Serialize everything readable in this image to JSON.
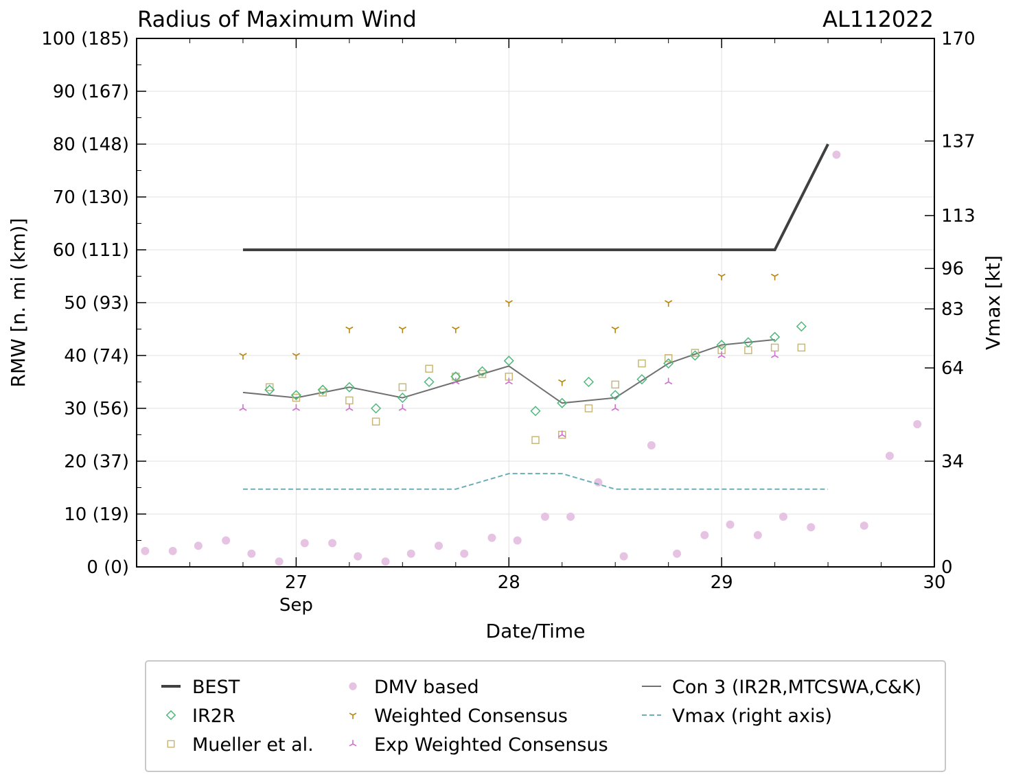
{
  "chart_data": {
    "type": "line",
    "title": "Radius of Maximum Wind",
    "storm_id": "AL112022",
    "xlabel": "Date/Time",
    "ylabel": "RMW [n. mi (km)]",
    "y2label": "Vmax [kt]",
    "xlim": [
      26.25,
      30.0
    ],
    "ylim": [
      0,
      100
    ],
    "x_ticks": [
      {
        "x": 27.0,
        "label": "27",
        "sublabel": "Sep"
      },
      {
        "x": 28.0,
        "label": "28",
        "sublabel": ""
      },
      {
        "x": 29.0,
        "label": "29",
        "sublabel": ""
      },
      {
        "x": 30.0,
        "label": "30",
        "sublabel": ""
      }
    ],
    "y_ticks": [
      {
        "value": 0,
        "label": "0 (0)"
      },
      {
        "value": 10,
        "label": "10 (19)"
      },
      {
        "value": 20,
        "label": "20 (37)"
      },
      {
        "value": 30,
        "label": "30 (56)"
      },
      {
        "value": 40,
        "label": "40 (74)"
      },
      {
        "value": 50,
        "label": "50 (93)"
      },
      {
        "value": 60,
        "label": "60 (111)"
      },
      {
        "value": 70,
        "label": "70 (130)"
      },
      {
        "value": 80,
        "label": "80 (148)"
      },
      {
        "value": 90,
        "label": "90 (167)"
      },
      {
        "value": 100,
        "label": "100 (185)"
      }
    ],
    "y2_ticks": [
      {
        "value": 0,
        "label": "0"
      },
      {
        "value": 34,
        "label": "34"
      },
      {
        "value": 64,
        "label": "64"
      },
      {
        "value": 83,
        "label": "83"
      },
      {
        "value": 96,
        "label": "96"
      },
      {
        "value": 113,
        "label": "113"
      },
      {
        "value": 137,
        "label": "137"
      },
      {
        "value": 170,
        "label": "170"
      }
    ],
    "y2_max": 170,
    "grid": true,
    "legend_position": "bottom",
    "series": [
      {
        "name": "BEST",
        "kind": "line",
        "color": "#404040",
        "x": [
          26.75,
          29.25,
          29.5
        ],
        "y": [
          60,
          60,
          80
        ]
      },
      {
        "name": "IR2R",
        "kind": "diamond",
        "color": "#4db87a",
        "x": [
          26.875,
          27.0,
          27.125,
          27.25,
          27.375,
          27.5,
          27.625,
          27.75,
          27.875,
          28.0,
          28.125,
          28.25,
          28.375,
          28.5,
          28.625,
          28.75,
          28.875,
          29.0,
          29.125,
          29.25,
          29.375
        ],
        "y": [
          33.5,
          32.5,
          33.5,
          34,
          30,
          32,
          35,
          36,
          37,
          39,
          29.5,
          31,
          35,
          32.5,
          35.5,
          38.5,
          40,
          42,
          42.5,
          43.5,
          45.5
        ]
      },
      {
        "name": "Mueller et al.",
        "kind": "square",
        "color": "#c8b878",
        "x": [
          26.875,
          27.0,
          27.125,
          27.25,
          27.375,
          27.5,
          27.625,
          27.75,
          27.875,
          28.0,
          28.125,
          28.25,
          28.375,
          28.5,
          28.625,
          28.75,
          28.875,
          29.0,
          29.125,
          29.25,
          29.375
        ],
        "y": [
          34,
          32,
          33,
          31.5,
          27.5,
          34,
          37.5,
          36,
          36.5,
          36,
          24,
          25,
          30,
          34.5,
          38.5,
          39.5,
          40.5,
          41,
          41,
          41.5,
          41.5
        ]
      },
      {
        "name": "DMV based",
        "kind": "dot",
        "color": "#e6c3e3",
        "x": [
          26.29,
          26.42,
          26.54,
          26.67,
          26.79,
          26.92,
          27.04,
          27.17,
          27.29,
          27.42,
          27.54,
          27.67,
          27.79,
          27.92,
          28.04,
          28.17,
          28.29,
          28.42,
          28.54,
          28.67,
          28.79,
          28.92,
          29.04,
          29.17,
          29.29,
          29.42,
          29.54,
          29.67,
          29.79,
          29.92
        ],
        "y": [
          3,
          3,
          4,
          5,
          2.5,
          1,
          4.5,
          4.5,
          2,
          1,
          2.5,
          4,
          2.5,
          5.5,
          5,
          9.5,
          9.5,
          16,
          2,
          23,
          2.5,
          6,
          8,
          6,
          9.5,
          7.5,
          78,
          7.8,
          21,
          27
        ]
      },
      {
        "name": "Weighted Consensus",
        "kind": "tri_down",
        "color": "#b8860b",
        "x": [
          26.75,
          27.0,
          27.25,
          27.5,
          27.75,
          28.0,
          28.25,
          28.5,
          28.75,
          29.0,
          29.25
        ],
        "y": [
          40,
          40,
          45,
          45,
          45,
          50,
          35,
          45,
          50,
          55,
          55
        ]
      },
      {
        "name": "Con 3 (IR2R,MTCSWA,C&K)",
        "kind": "line",
        "color": "#707070",
        "x": [
          26.75,
          27.0,
          27.25,
          27.5,
          27.75,
          28.0,
          28.25,
          28.5,
          28.75,
          29.0,
          29.25
        ],
        "y": [
          33,
          32,
          34,
          32,
          35,
          38,
          31,
          32,
          38.5,
          42,
          43
        ]
      },
      {
        "name": "Exp Weighted Consensus",
        "kind": "tri_up",
        "color": "#d070d0",
        "x": [
          26.75,
          27.0,
          27.25,
          27.5,
          27.75,
          28.0,
          28.25,
          28.5,
          28.75,
          29.0,
          29.25
        ],
        "y": [
          30,
          30,
          30,
          30,
          35,
          35,
          25,
          30,
          35,
          40,
          40
        ]
      },
      {
        "name": "Vmax (right axis)",
        "kind": "dashed",
        "color": "#6aaeb8",
        "axis": "right",
        "x": [
          26.75,
          27.75,
          28.0,
          28.25,
          28.5,
          29.5
        ],
        "y": [
          25,
          25,
          30,
          30,
          25,
          25
        ]
      }
    ],
    "legend": [
      {
        "label": "BEST",
        "kind": "line",
        "color": "#404040"
      },
      {
        "label": "IR2R",
        "kind": "diamond",
        "color": "#4db87a"
      },
      {
        "label": "Mueller et al.",
        "kind": "square",
        "color": "#c8b878"
      },
      {
        "label": "DMV based",
        "kind": "dot",
        "color": "#e6c3e3"
      },
      {
        "label": "Weighted Consensus",
        "kind": "tri_down",
        "color": "#b8860b"
      },
      {
        "label": "Exp Weighted Consensus",
        "kind": "tri_up",
        "color": "#d070d0"
      },
      {
        "label": "Con 3 (IR2R,MTCSWA,C&K)",
        "kind": "thinline",
        "color": "#707070"
      },
      {
        "label": "Vmax (right axis)",
        "kind": "dashed",
        "color": "#6aaeb8"
      }
    ]
  }
}
